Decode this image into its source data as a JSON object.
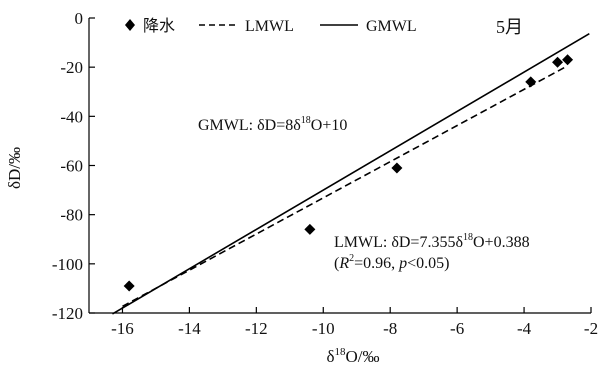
{
  "chart_data": {
    "type": "scatter",
    "title": "",
    "month_label": "5月",
    "xlabel": {
      "base": "δ",
      "sup": "18",
      "rest": "O/‰"
    },
    "ylabel": "δD/‰",
    "xlim": [
      -17,
      -2
    ],
    "ylim": [
      -120,
      0
    ],
    "xticks": [
      -16,
      -14,
      -12,
      -10,
      -8,
      -6,
      -4,
      -2
    ],
    "yticks": [
      0,
      -20,
      -40,
      -60,
      -80,
      -100,
      -120
    ],
    "legend": {
      "placement": "top",
      "entries": [
        {
          "key": "precip",
          "label": "降水",
          "marker": "diamond"
        },
        {
          "key": "lmwl",
          "label": "LMWL",
          "marker": "dashed-line"
        },
        {
          "key": "gmwl",
          "label": "GMWL",
          "marker": "solid-line"
        }
      ]
    },
    "series": [
      {
        "name": "降水",
        "type": "scatter",
        "color": "#000000",
        "points": [
          {
            "x": -15.8,
            "y": -109
          },
          {
            "x": -10.4,
            "y": -86
          },
          {
            "x": -7.8,
            "y": -61
          },
          {
            "x": -3.8,
            "y": -26
          },
          {
            "x": -3.0,
            "y": -18
          },
          {
            "x": -2.7,
            "y": -17
          }
        ]
      },
      {
        "name": "LMWL",
        "type": "line",
        "style": "dashed",
        "slope": 7.355,
        "intercept": 0.388,
        "x_range": [
          -16.0,
          -2.7
        ]
      },
      {
        "name": "GMWL",
        "type": "line",
        "style": "solid",
        "slope": 8,
        "intercept": 10,
        "x_range": [
          -16.3,
          -2.05
        ]
      }
    ],
    "annotations": {
      "gmwl": {
        "prefix": "GMWL: δD=8δ",
        "sup": "18",
        "suffix": "O+10"
      },
      "lmwl": {
        "prefix": "LMWL: δD=7.355δ",
        "sup": "18",
        "suffix": "O+0.388"
      },
      "stats": {
        "open": "(",
        "r": "R",
        "r_sup": "2",
        "r_val": "=0.96, ",
        "p": "p",
        "p_val": "<0.05)"
      }
    }
  }
}
